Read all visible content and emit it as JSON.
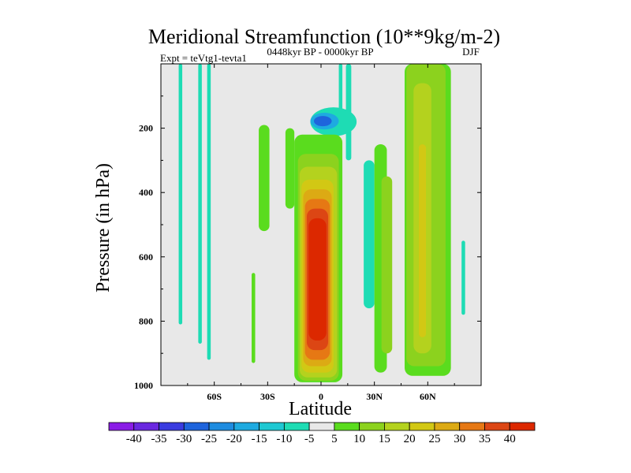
{
  "chart_data": {
    "type": "heatmap",
    "title": "Meridional Streamfunction (10**9kg/m-2)",
    "left_label": "Expt = teVtg1-tevta1",
    "center_label": "0448kyr BP - 0000kyr BP",
    "right_label": "DJF",
    "xlabel": "Latitude",
    "ylabel": "Pressure (in hPa)",
    "xlim": [
      -90,
      90
    ],
    "ylim": [
      1000,
      0
    ],
    "x_ticks": [
      {
        "value": -60,
        "label": "60S"
      },
      {
        "value": -30,
        "label": "30S"
      },
      {
        "value": 0,
        "label": "0"
      },
      {
        "value": 30,
        "label": "30N"
      },
      {
        "value": 60,
        "label": "60N"
      }
    ],
    "y_ticks": [
      {
        "value": 200,
        "label": "200"
      },
      {
        "value": 400,
        "label": "400"
      },
      {
        "value": 600,
        "label": "600"
      },
      {
        "value": 800,
        "label": "800"
      },
      {
        "value": 1000,
        "label": "1000"
      }
    ],
    "background_color": "#e8e8e8",
    "levels": [
      -40,
      -35,
      -30,
      -25,
      -20,
      -15,
      -10,
      -5,
      5,
      10,
      15,
      20,
      25,
      30,
      35,
      40
    ],
    "level_labels": [
      "-40",
      "-35",
      "-30",
      "-25",
      "-20",
      "-15",
      "-10",
      "-5",
      "5",
      "10",
      "15",
      "20",
      "25",
      "30",
      "35",
      "40"
    ],
    "colors": [
      "#8a1ce6",
      "#6a28e0",
      "#3a3ce0",
      "#1e64dc",
      "#1e8ce0",
      "#1eaae0",
      "#1ec8d2",
      "#1edcb4",
      "#e8e8e8",
      "#5adc1e",
      "#8cd21e",
      "#b4d21e",
      "#d2c814",
      "#dcaa14",
      "#e67814",
      "#dc4614",
      "#dc2800"
    ],
    "features": [
      {
        "kind": "band",
        "lat": [
          -80,
          -78
        ],
        "p": [
          0,
          810
        ],
        "level": -5
      },
      {
        "kind": "band",
        "lat": [
          -69,
          -67
        ],
        "p": [
          0,
          870
        ],
        "level": -5
      },
      {
        "kind": "band",
        "lat": [
          -64,
          -62
        ],
        "p": [
          0,
          920
        ],
        "level": -5
      },
      {
        "kind": "band",
        "lat": [
          -39,
          -37
        ],
        "p": [
          650,
          930
        ],
        "level": 5
      },
      {
        "kind": "band",
        "lat": [
          -35,
          -29
        ],
        "p": [
          190,
          520
        ],
        "level": 5
      },
      {
        "kind": "band",
        "lat": [
          -20,
          -15
        ],
        "p": [
          200,
          450
        ],
        "level": 5
      },
      {
        "kind": "blob",
        "lat": 7,
        "p": 180,
        "rlat": 13,
        "rp": 45,
        "level": -5
      },
      {
        "kind": "blob",
        "lat": 2,
        "p": 178,
        "rlat": 8,
        "rp": 26,
        "level": -15
      },
      {
        "kind": "blob",
        "lat": 1,
        "p": 178,
        "rlat": 5,
        "rp": 16,
        "level": -25
      },
      {
        "kind": "band",
        "lat": [
          10,
          12
        ],
        "p": [
          0,
          150
        ],
        "level": -5
      },
      {
        "kind": "band",
        "lat": [
          14,
          17
        ],
        "p": [
          0,
          300
        ],
        "level": -5
      },
      {
        "kind": "band",
        "lat": [
          24,
          30
        ],
        "p": [
          300,
          760
        ],
        "level": -5
      },
      {
        "kind": "band",
        "lat": [
          30,
          37
        ],
        "p": [
          250,
          960
        ],
        "level": 5
      },
      {
        "kind": "band",
        "lat": [
          34,
          40
        ],
        "p": [
          350,
          900
        ],
        "level": 10
      },
      {
        "kind": "band",
        "lat": [
          79,
          81
        ],
        "p": [
          550,
          780
        ],
        "level": -5
      },
      {
        "kind": "band",
        "lat": [
          47,
          73
        ],
        "p": [
          0,
          970
        ],
        "level": 5
      },
      {
        "kind": "band",
        "lat": [
          48,
          70
        ],
        "p": [
          0,
          940
        ],
        "level": 10
      },
      {
        "kind": "band",
        "lat": [
          52,
          62
        ],
        "p": [
          60,
          900
        ],
        "level": 15
      },
      {
        "kind": "band",
        "lat": [
          55,
          59
        ],
        "p": [
          250,
          850
        ],
        "level": 20
      },
      {
        "kind": "band",
        "lat": [
          -15,
          12
        ],
        "p": [
          220,
          990
        ],
        "level": 5
      },
      {
        "kind": "band",
        "lat": [
          -13,
          10
        ],
        "p": [
          280,
          985
        ],
        "level": 10
      },
      {
        "kind": "band",
        "lat": [
          -12,
          9
        ],
        "p": [
          320,
          975
        ],
        "level": 15
      },
      {
        "kind": "band",
        "lat": [
          -11,
          7
        ],
        "p": [
          360,
          960
        ],
        "level": 20
      },
      {
        "kind": "band",
        "lat": [
          -10,
          6
        ],
        "p": [
          390,
          940
        ],
        "level": 25
      },
      {
        "kind": "band",
        "lat": [
          -9,
          5
        ],
        "p": [
          420,
          920
        ],
        "level": 30
      },
      {
        "kind": "band",
        "lat": [
          -8,
          4
        ],
        "p": [
          450,
          890
        ],
        "level": 35
      },
      {
        "kind": "band",
        "lat": [
          -7,
          3
        ],
        "p": [
          480,
          860
        ],
        "level": 40
      }
    ]
  }
}
